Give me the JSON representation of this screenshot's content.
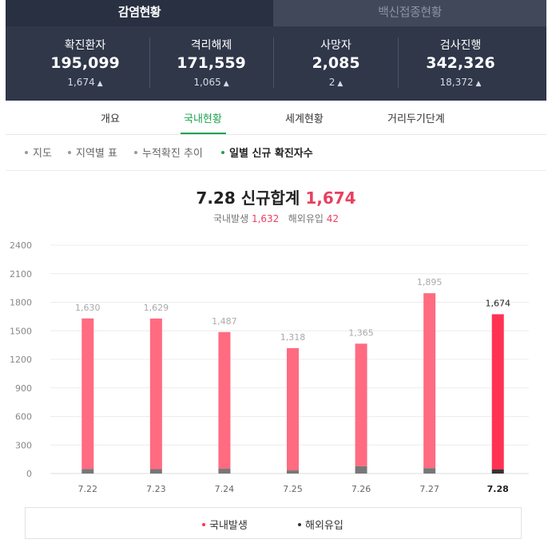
{
  "tabs": {
    "active": "감염현황",
    "inactive": "백신접종현황"
  },
  "stats": [
    {
      "label": "확진환자",
      "value": "195,099",
      "change": "1,674"
    },
    {
      "label": "격리해제",
      "value": "171,559",
      "change": "1,065"
    },
    {
      "label": "사망자",
      "value": "2,085",
      "change": "2"
    },
    {
      "label": "검사진행",
      "value": "342,326",
      "change": "18,372"
    }
  ],
  "subnav": [
    "개요",
    "국내현황",
    "세계현황",
    "거리두기단계"
  ],
  "chips": [
    "지도",
    "지역별 표",
    "누적확진 추이",
    "일별 신규 확진자수"
  ],
  "heading": {
    "prefix": "7.28 신규합계",
    "total": "1,674"
  },
  "subhead": {
    "domestic_label": "국내발생",
    "domestic_value": "1,632",
    "overseas_label": "해외유입",
    "overseas_value": "42"
  },
  "colors": {
    "domestic": "#ff6b81",
    "domestic_latest": "#ff3254",
    "overseas": "#777777",
    "overseas_latest": "#333333",
    "accent": "#1ba34e"
  },
  "chart_data": {
    "type": "bar",
    "stacked": true,
    "categories": [
      "7.22",
      "7.23",
      "7.24",
      "7.25",
      "7.26",
      "7.27",
      "7.28"
    ],
    "totals": [
      1630,
      1629,
      1487,
      1318,
      1365,
      1895,
      1674
    ],
    "total_labels": [
      "1,630",
      "1,629",
      "1,487",
      "1,318",
      "1,365",
      "1,895",
      "1,674"
    ],
    "series": [
      {
        "name": "국내발생",
        "values": [
          1583,
          1583,
          1437,
          1285,
          1288,
          1838,
          1632
        ]
      },
      {
        "name": "해외유입",
        "values": [
          47,
          46,
          50,
          33,
          77,
          57,
          42
        ]
      }
    ],
    "yticks": [
      0,
      300,
      600,
      900,
      1200,
      1500,
      1800,
      2100,
      2400
    ],
    "ylim": [
      0,
      2400
    ],
    "grid": true,
    "legend_position": "bottom"
  }
}
